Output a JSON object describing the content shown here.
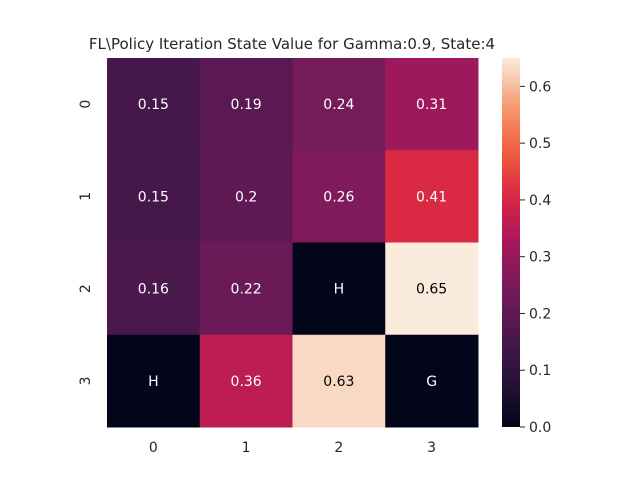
{
  "chart_data": {
    "type": "heatmap",
    "title": "FL\\Policy Iteration State Value for Gamma:0.9, State:4",
    "xlabel": "",
    "ylabel": "",
    "x_categories": [
      "0",
      "1",
      "2",
      "3"
    ],
    "y_categories": [
      "0",
      "1",
      "2",
      "3"
    ],
    "values": [
      [
        0.15,
        0.19,
        0.24,
        0.31
      ],
      [
        0.15,
        0.2,
        0.26,
        0.41
      ],
      [
        0.16,
        0.22,
        0.0,
        0.65
      ],
      [
        0.0,
        0.36,
        0.63,
        0.0
      ]
    ],
    "annotations": [
      [
        "0.15",
        "0.19",
        "0.24",
        "0.31"
      ],
      [
        "0.15",
        "0.2",
        "0.26",
        "0.41"
      ],
      [
        "0.16",
        "0.22",
        "H",
        "0.65"
      ],
      [
        "H",
        "0.36",
        "0.63",
        "G"
      ]
    ],
    "colorbar": {
      "range": [
        0.0,
        0.65
      ],
      "ticks": [
        "0.0",
        "0.1",
        "0.2",
        "0.3",
        "0.4",
        "0.5",
        "0.6"
      ]
    },
    "colormap": "rocket",
    "grid": false
  }
}
